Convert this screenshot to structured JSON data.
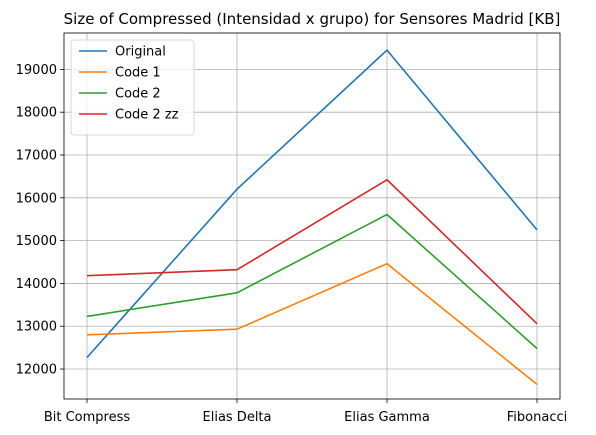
{
  "chart_data": {
    "type": "line",
    "title": "Size of Compressed (Intensidad x grupo) for Sensores Madrid [KB]",
    "xlabel": "",
    "ylabel": "",
    "categories": [
      "Bit Compress",
      "Elias Delta",
      "Elias Gamma",
      "Fibonacci"
    ],
    "ylim": [
      11300,
      19850
    ],
    "yticks": [
      12000,
      13000,
      14000,
      15000,
      16000,
      17000,
      18000,
      19000
    ],
    "grid": true,
    "legend_position": "top-left",
    "series": [
      {
        "name": "Original",
        "color": "#1f77b4",
        "values": [
          12270,
          16200,
          19450,
          15250
        ]
      },
      {
        "name": "Code 1",
        "color": "#ff7f0e",
        "values": [
          12800,
          12930,
          14460,
          11640
        ]
      },
      {
        "name": "Code 2",
        "color": "#2ca02c",
        "values": [
          13230,
          13780,
          15610,
          12480
        ]
      },
      {
        "name": "Code 2 zz",
        "color": "#d62728",
        "values": [
          14180,
          14320,
          16420,
          13060
        ]
      }
    ]
  }
}
